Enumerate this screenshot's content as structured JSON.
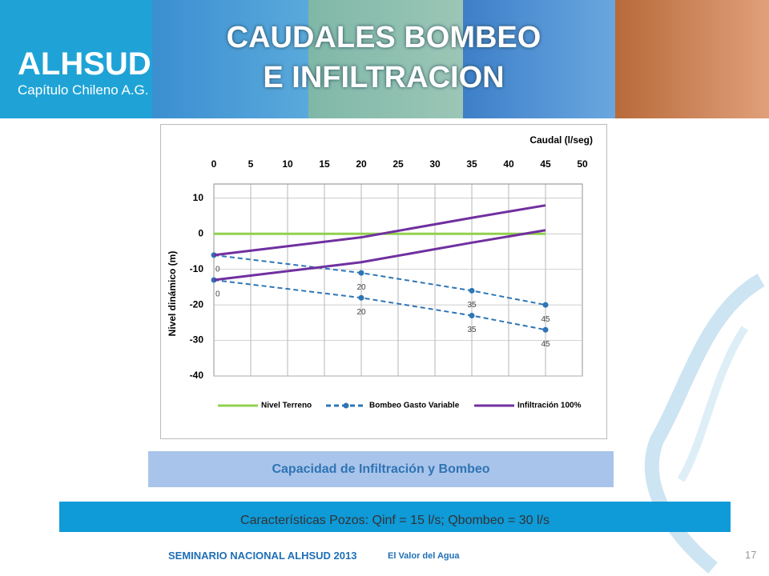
{
  "header": {
    "logo": "ALHSUD",
    "logo_subtitle": "Capítulo Chileno A.G.",
    "title_lines": [
      "CAUDALES BOMBEO",
      "E INFILTRACION"
    ]
  },
  "chart_data": {
    "type": "line",
    "xlabel": "Caudal (l/seg)",
    "ylabel": "Nivel dinámico (m)",
    "xlim": [
      0,
      50
    ],
    "xticks": [
      0,
      5,
      10,
      15,
      20,
      25,
      30,
      35,
      40,
      45,
      50
    ],
    "ylim": [
      -40,
      14
    ],
    "yticks": [
      10,
      0,
      -10,
      -20,
      -30,
      -40
    ],
    "grid": true,
    "legend": "bottom",
    "series": [
      {
        "name": "Nivel Terreno",
        "color": "#92d050",
        "dashed": false,
        "markers": false,
        "data_labels": false,
        "lines": [
          {
            "x": [
              0,
              45
            ],
            "values": [
              0,
              0
            ]
          }
        ]
      },
      {
        "name": "Bombeo Gasto Variable",
        "color": "#2e75b6",
        "dashed": true,
        "markers": true,
        "data_labels": true,
        "lines": [
          {
            "x": [
              0,
              20,
              35,
              45
            ],
            "values": [
              -6,
              -11,
              -16,
              -20
            ]
          },
          {
            "x": [
              0,
              20,
              35,
              45
            ],
            "values": [
              -13,
              -18,
              -23,
              -27
            ]
          }
        ]
      },
      {
        "name": "Infiltración 100%",
        "color": "#7030a0",
        "dashed": false,
        "markers": false,
        "data_labels": false,
        "lines": [
          {
            "x": [
              0,
              20,
              35,
              45
            ],
            "values": [
              -6,
              -1,
              4.5,
              8
            ]
          },
          {
            "x": [
              0,
              20,
              35,
              45
            ],
            "values": [
              -13,
              -8,
              -2.5,
              1
            ]
          }
        ]
      }
    ]
  },
  "caption": "Capacidad de Infiltración y Bombeo",
  "info_bar": "Características Pozos: Qinf = 15 l/s; Qbombeo = 30 l/s",
  "footer": {
    "event": "SEMINARIO NACIONAL ALHSUD 2013",
    "tagline": "El Valor del Agua",
    "page": "17"
  }
}
